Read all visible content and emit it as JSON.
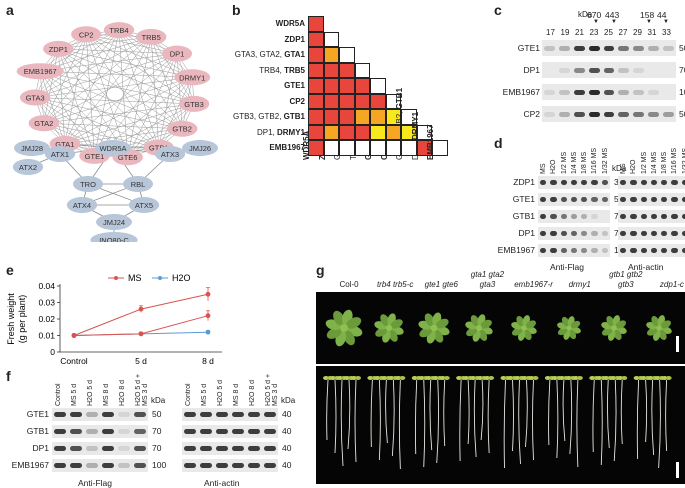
{
  "panels": {
    "a": "a",
    "b": "b",
    "c": "c",
    "d": "d",
    "e": "e",
    "f": "f",
    "g": "g"
  },
  "network": {
    "pink_nodes": [
      "TRB4",
      "CP2",
      "TRB5",
      "ZDP1",
      "DP1",
      "EMB1967",
      "DRMY1",
      "GTA3",
      "GTB3",
      "GTA2",
      "GTB2",
      "GTA1",
      "GTB1",
      "GTE1",
      "GTE6"
    ],
    "blue_nodes": [
      "JMJ28",
      "ATX1",
      "WDR5A",
      "JMJ26",
      "ATX2",
      "ATX3",
      "TRO",
      "RBL",
      "ATX4",
      "ATX5",
      "JMJ24",
      "INO80-C"
    ],
    "colors": {
      "pink": "#e9b7bd",
      "blue": "#b7c6d8",
      "edge": "#888888"
    }
  },
  "matrix": {
    "rows": [
      {
        "prefix": "",
        "bold": "WDR5A"
      },
      {
        "prefix": "",
        "bold": "ZDP1"
      },
      {
        "prefix": "GTA3, GTA2, ",
        "bold": "GTA1"
      },
      {
        "prefix": "TRB4, ",
        "bold": "TRB5"
      },
      {
        "prefix": "",
        "bold": "GTE1"
      },
      {
        "prefix": "",
        "bold": "CP2"
      },
      {
        "prefix": "GTB3, GTB2, ",
        "bold": "GTB1"
      },
      {
        "prefix": "DP1, ",
        "bold": "DRMY1"
      },
      {
        "prefix": "",
        "bold": "EMB1967"
      }
    ],
    "cells": [
      [
        "r"
      ],
      [
        "r",
        "w"
      ],
      [
        "r",
        "o",
        "w"
      ],
      [
        "r",
        "r",
        "r",
        "w"
      ],
      [
        "r",
        "r",
        "r",
        "r",
        "w"
      ],
      [
        "r",
        "r",
        "r",
        "r",
        "r",
        "w"
      ],
      [
        "r",
        "r",
        "r",
        "o",
        "o",
        "y",
        "w"
      ],
      [
        "r",
        "o",
        "r",
        "r",
        "y",
        "o",
        "y",
        "w"
      ],
      [
        "r",
        "w",
        "w",
        "w",
        "w",
        "w",
        "w",
        "r",
        "w"
      ]
    ],
    "colors": {
      "r": "#e8453c",
      "o": "#f5a623",
      "y": "#f8e71c",
      "w": "#ffffff"
    }
  },
  "panel_c": {
    "kda_label": "kDa",
    "markers": [
      "670",
      "443",
      "158",
      "44"
    ],
    "fractions": [
      "17",
      "19",
      "21",
      "23",
      "25",
      "27",
      "29",
      "31",
      "33"
    ],
    "rows": [
      {
        "label": "GTE1",
        "mw": "50"
      },
      {
        "label": "DP1",
        "mw": "70"
      },
      {
        "label": "EMB1967",
        "mw": "100"
      },
      {
        "label": "CP2",
        "mw": "50"
      }
    ]
  },
  "panel_d": {
    "lanes": [
      "MS",
      "H2O",
      "1/2 MS",
      "1/4 MS",
      "1/8 MS",
      "1/16 MS",
      "1/32 MS"
    ],
    "kda_label": "kDa",
    "rows": [
      {
        "label": "ZDP1",
        "mw_left": "35",
        "mw_right": "40"
      },
      {
        "label": "GTE1",
        "mw_left": "50",
        "mw_right": "40"
      },
      {
        "label": "GTB1",
        "mw_left": "70",
        "mw_right": "40"
      },
      {
        "label": "DP1",
        "mw_left": "70",
        "mw_right": "40"
      },
      {
        "label": "EMB1967",
        "mw_left": "100",
        "mw_right": "40"
      }
    ],
    "left_caption": "Anti-Flag",
    "right_caption": "Anti-actin"
  },
  "chart_data": {
    "type": "line",
    "categories": [
      "Control",
      "5 d",
      "8 d"
    ],
    "series": [
      {
        "name": "MS",
        "values": [
          0.01,
          0.026,
          0.035
        ],
        "err": [
          0.001,
          0.002,
          0.004
        ],
        "color": "#d9534f"
      },
      {
        "name": "H2O",
        "values": [
          0.01,
          0.011,
          0.012
        ],
        "err": [
          0.001,
          0.001,
          0.001
        ],
        "color": "#5b9bd5"
      },
      {
        "name": "",
        "values": [
          0.01,
          0.011,
          0.022
        ],
        "err": [
          0.001,
          0.001,
          0.003
        ],
        "color": "#d9534f"
      }
    ],
    "ylabel_line1": "Fresh weight",
    "ylabel_line2": "(g per plant)",
    "ylim": [
      0,
      0.04
    ],
    "yticks": [
      "0",
      "0.01",
      "0.02",
      "0.03",
      "0.04"
    ],
    "legend": [
      "MS",
      "H2O"
    ]
  },
  "panel_f": {
    "lanes": [
      "Control",
      "MS 5 d",
      "H2O 5 d",
      "MS 8 d",
      "H2O 8 d",
      "H2O 5 d + MS 3 d"
    ],
    "kda_label": "kDa",
    "rows": [
      {
        "label": "GTE1",
        "mw_left": "50",
        "mw_right": "40"
      },
      {
        "label": "GTB1",
        "mw_left": "70",
        "mw_right": "40"
      },
      {
        "label": "DP1",
        "mw_left": "70",
        "mw_right": "40"
      },
      {
        "label": "EMB1967",
        "mw_left": "100",
        "mw_right": "40"
      }
    ],
    "left_caption": "Anti-Flag",
    "right_caption": "Anti-actin"
  },
  "panel_g": {
    "genotypes": [
      {
        "line1": "",
        "line2": "Col-0"
      },
      {
        "line1": "",
        "line2": "trb4 trb5-c"
      },
      {
        "line1": "",
        "line2": "gte1 gte6"
      },
      {
        "line1": "gta1 gta2",
        "line2": "gta3"
      },
      {
        "line1": "",
        "line2": "emb1967-r"
      },
      {
        "line1": "",
        "line2": "drmy1"
      },
      {
        "line1": "gtb1 gtb2",
        "line2": "gtb3"
      },
      {
        "line1": "",
        "line2": "zdp1-c"
      }
    ]
  }
}
